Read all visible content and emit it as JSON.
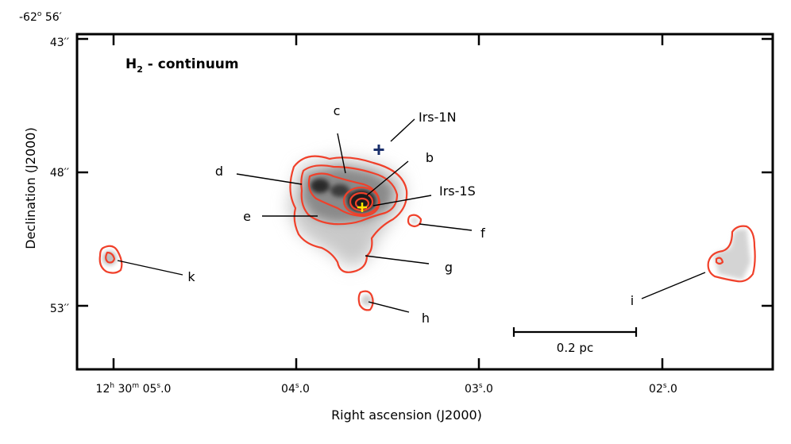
{
  "figure": {
    "title": "H",
    "title_sub": "2",
    "title_suffix": " - continuum",
    "dec_top_label": "-62",
    "dec_top_sup": "o",
    "dec_top_min": " 56′",
    "y_axis_label": "Declination (J2000)",
    "x_axis_label": "Right ascension (J2000)",
    "y_ticks": [
      "43′′",
      "48′′",
      "53′′"
    ],
    "x_ticks": [
      {
        "p1": "12",
        "s1": "h",
        "p2": " 30",
        "s2": "m",
        "p3": " 05",
        "s3": "s",
        "p4": ".0"
      },
      {
        "p1": "04",
        "s1": "s",
        "p2": ".0"
      },
      {
        "p1": "03",
        "s1": "s",
        "p2": ".0"
      },
      {
        "p1": "02",
        "s1": "s",
        "p2": ".0"
      }
    ],
    "scale_bar_label": "0.2 pc",
    "labels": {
      "b": "b",
      "c": "c",
      "d": "d",
      "e": "e",
      "f": "f",
      "g": "g",
      "h": "h",
      "i": "i",
      "k": "k",
      "irs1n": "Irs-1N",
      "irs1s": "Irs-1S"
    },
    "colors": {
      "contour": "#f0402a",
      "irs1n_marker": "#1a2f6b",
      "irs1s_marker": "#ffe600",
      "frame": "#000000"
    }
  }
}
